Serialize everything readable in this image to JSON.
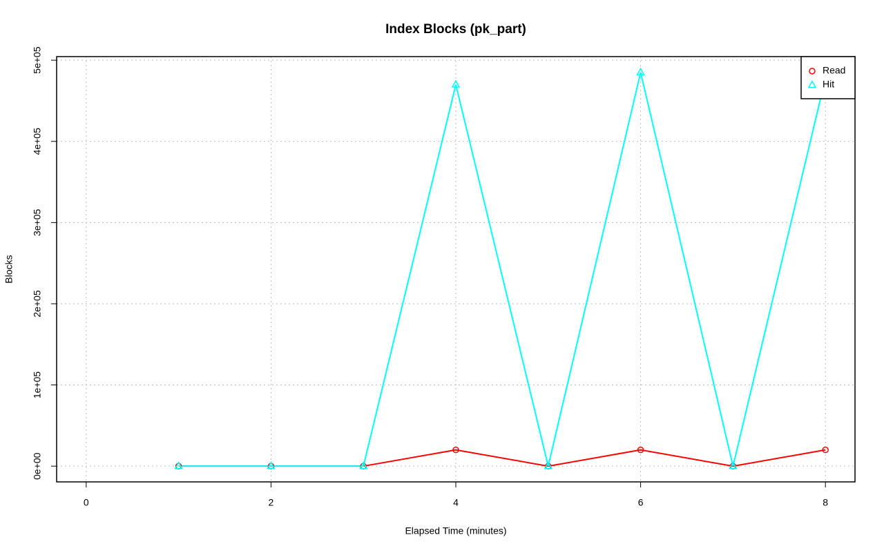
{
  "chart_data": {
    "type": "line",
    "title": "Index Blocks (pk_part)",
    "x_label": "Elapsed Time (minutes)",
    "y_label": "Blocks",
    "x": [
      1,
      2,
      3,
      4,
      5,
      6,
      7,
      8
    ],
    "series": [
      {
        "name": "Read",
        "color": "#ff0000",
        "marker": "circle",
        "values": [
          0,
          0,
          0,
          20000,
          0,
          20000,
          0,
          20000
        ]
      },
      {
        "name": "Hit",
        "color": "#00ffff",
        "marker": "triangle",
        "values": [
          0,
          0,
          0,
          470000,
          0,
          485000,
          0,
          478000
        ]
      }
    ],
    "xlim": [
      -0.32,
      8.32
    ],
    "xticks": [
      0,
      2,
      4,
      6,
      8
    ],
    "ylim": [
      -19400,
      504400
    ],
    "yticks": [
      {
        "value": 0,
        "label": "0e+00"
      },
      {
        "value": 100000,
        "label": "1e+05"
      },
      {
        "value": 200000,
        "label": "2e+05"
      },
      {
        "value": 300000,
        "label": "3e+05"
      },
      {
        "value": 400000,
        "label": "4e+05"
      },
      {
        "value": 500000,
        "label": "5e+05"
      }
    ],
    "grid": true,
    "legend": "topright"
  }
}
